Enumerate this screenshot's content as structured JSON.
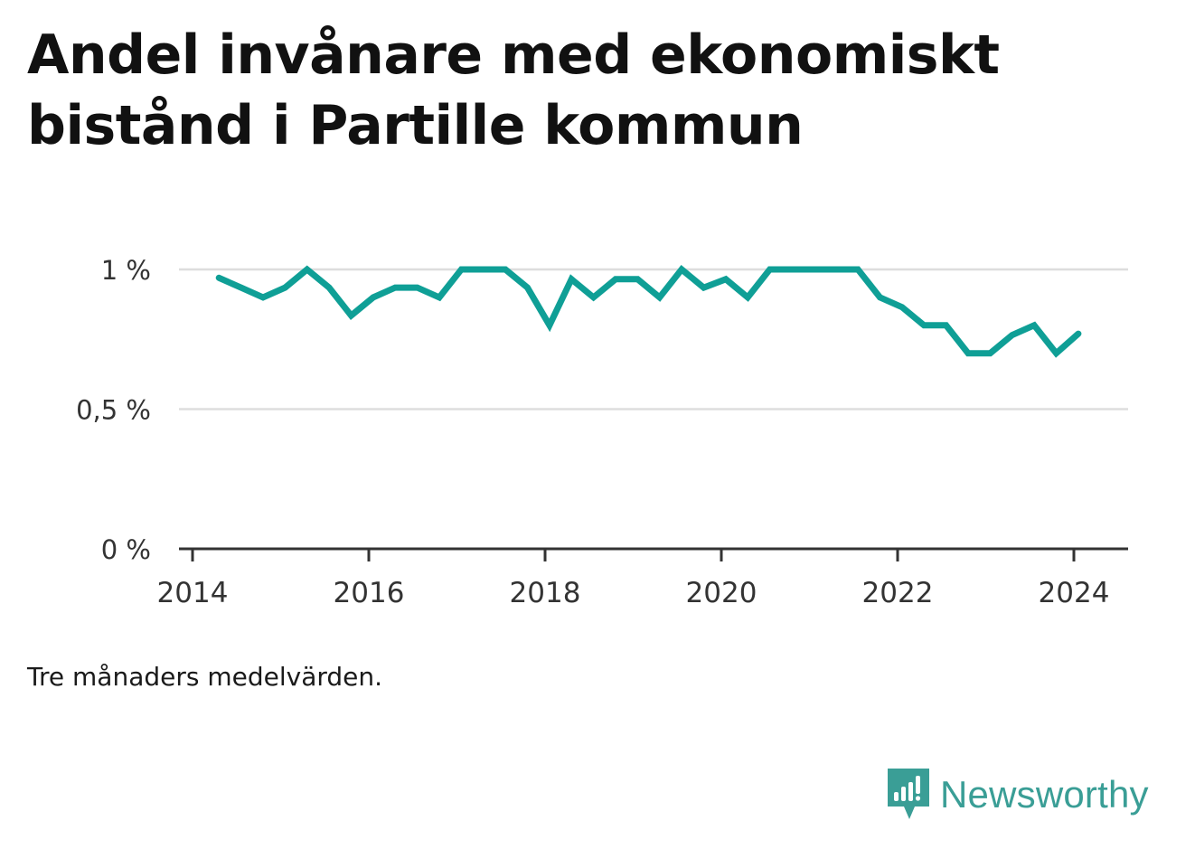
{
  "title": "Andel invånare med ekonomiskt bistånd i Partille kommun",
  "note": "Tre månaders medelvärden.",
  "brand": {
    "name": "Newsworthy",
    "icon": "bar-chart-speech-bubble-icon",
    "color": "#3a9e96"
  },
  "chart_data": {
    "type": "line",
    "color": "#0f9f96",
    "grid": true,
    "ylim": [
      0,
      1.0
    ],
    "xlim": [
      2014.0,
      2024.55
    ],
    "y_ticks": [
      {
        "value": 0,
        "label": "0 %"
      },
      {
        "value": 0.5,
        "label": "0,5 %"
      },
      {
        "value": 1.0,
        "label": "1 %"
      }
    ],
    "x_ticks": [
      {
        "value": 2014,
        "label": "2014"
      },
      {
        "value": 2016,
        "label": "2016"
      },
      {
        "value": 2018,
        "label": "2018"
      },
      {
        "value": 2020,
        "label": "2020"
      },
      {
        "value": 2022,
        "label": "2022"
      },
      {
        "value": 2024,
        "label": "2024"
      }
    ],
    "x": [
      2014.3,
      2014.55,
      2014.8,
      2015.05,
      2015.3,
      2015.55,
      2015.8,
      2016.05,
      2016.3,
      2016.55,
      2016.8,
      2017.05,
      2017.3,
      2017.55,
      2017.8,
      2018.05,
      2018.3,
      2018.55,
      2018.8,
      2019.05,
      2019.3,
      2019.55,
      2019.8,
      2020.05,
      2020.3,
      2020.55,
      2020.8,
      2021.05,
      2021.3,
      2021.55,
      2021.8,
      2022.05,
      2022.3,
      2022.55,
      2022.8,
      2023.05,
      2023.3,
      2023.55,
      2023.8,
      2024.05
    ],
    "values": [
      0.97,
      0.935,
      0.9,
      0.935,
      1.0,
      0.935,
      0.835,
      0.9,
      0.935,
      0.935,
      0.9,
      1.0,
      1.0,
      1.0,
      0.935,
      0.8,
      0.965,
      0.9,
      0.965,
      0.965,
      0.9,
      1.0,
      0.935,
      0.965,
      0.9,
      1.0,
      1.0,
      1.0,
      1.0,
      1.0,
      0.9,
      0.865,
      0.8,
      0.8,
      0.7,
      0.7,
      0.765,
      0.8,
      0.7,
      0.77
    ]
  }
}
